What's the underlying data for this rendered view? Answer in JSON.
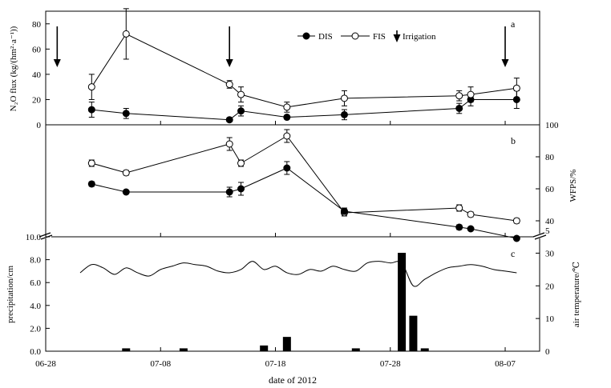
{
  "chart_data": [
    {
      "panel": "a",
      "type": "line",
      "ylabel": "N₂O flux (kg/(hm²·a⁻¹))",
      "ylim": [
        0,
        90
      ],
      "yticks": [
        0,
        20,
        40,
        60,
        80
      ],
      "legend": {
        "position": "top-right",
        "entries": [
          "DIS",
          "FIS",
          "Irrigation"
        ]
      },
      "irrigation_dates": [
        "2012-06-29",
        "2012-07-14",
        "2012-08-07"
      ],
      "series": [
        {
          "name": "DIS",
          "marker": "filled-circle",
          "x": [
            "2012-07-02",
            "2012-07-05",
            "2012-07-14",
            "2012-07-15",
            "2012-07-19",
            "2012-07-24",
            "2012-08-03",
            "2012-08-04",
            "2012-08-08"
          ],
          "values": [
            12,
            9,
            4,
            11,
            6,
            8,
            13,
            20,
            20
          ],
          "errors": [
            6,
            4,
            1.5,
            4,
            1.5,
            4,
            4,
            5,
            7
          ]
        },
        {
          "name": "FIS",
          "marker": "open-circle",
          "x": [
            "2012-07-02",
            "2012-07-05",
            "2012-07-14",
            "2012-07-15",
            "2012-07-19",
            "2012-07-24",
            "2012-08-03",
            "2012-08-04",
            "2012-08-08"
          ],
          "values": [
            30,
            72,
            32,
            24,
            14,
            21,
            23,
            24,
            29
          ],
          "errors": [
            10,
            20,
            3,
            6,
            4,
            6,
            4,
            6,
            8
          ]
        }
      ]
    },
    {
      "panel": "b",
      "type": "line",
      "ylabel": "WFPS/%",
      "ylim": [
        30,
        100
      ],
      "yticks": [
        40,
        60,
        80,
        100
      ],
      "extra_tick_label": "5",
      "series": [
        {
          "name": "FIS",
          "marker": "open-circle",
          "x": [
            "2012-07-02",
            "2012-07-05",
            "2012-07-14",
            "2012-07-15",
            "2012-07-19",
            "2012-07-24",
            "2012-08-03",
            "2012-08-04",
            "2012-08-08"
          ],
          "values": [
            76,
            70,
            88,
            76,
            93,
            45,
            48,
            44,
            40
          ],
          "errors": [
            2,
            1.5,
            4,
            2,
            4,
            2,
            2,
            1.5,
            1.5
          ]
        },
        {
          "name": "DIS",
          "marker": "filled-circle",
          "x": [
            "2012-07-02",
            "2012-07-05",
            "2012-07-14",
            "2012-07-15",
            "2012-07-19",
            "2012-07-24",
            "2012-08-03",
            "2012-08-04",
            "2012-08-08"
          ],
          "values": [
            63,
            58,
            58,
            60,
            73,
            46,
            36,
            35,
            29
          ],
          "errors": [
            1.5,
            1,
            3,
            4,
            4,
            2,
            1.5,
            1,
            1
          ]
        }
      ]
    },
    {
      "panel": "c",
      "type": "bar",
      "xlabel": "date of 2012",
      "ylabel": "precipitation/cm",
      "ylabel_right": "air temperature/℃",
      "ylim": [
        0,
        10
      ],
      "yticks": [
        0.0,
        2.0,
        4.0,
        6.0,
        8.0,
        10.0
      ],
      "ytick_labels": [
        "0.0",
        "2.0",
        "4.0",
        "6.0",
        "8.0",
        "10.0"
      ],
      "ylim_right": [
        0,
        35
      ],
      "yticks_right": [
        0,
        10,
        20,
        30
      ],
      "x_range": [
        "2012-06-28",
        "2012-08-10"
      ],
      "xticks": [
        "06-28",
        "07-08",
        "07-18",
        "07-28",
        "08-07"
      ],
      "precipitation": {
        "x": [
          "2012-07-05",
          "2012-07-10",
          "2012-07-17",
          "2012-07-19",
          "2012-07-25",
          "2012-07-29",
          "2012-07-30",
          "2012-07-31"
        ],
        "values": [
          0.25,
          0.25,
          0.5,
          1.25,
          0.25,
          8.6,
          3.1,
          0.25
        ]
      },
      "air_temperature": {
        "x": [
          "2012-07-01",
          "2012-07-02",
          "2012-07-03",
          "2012-07-04",
          "2012-07-05",
          "2012-07-06",
          "2012-07-07",
          "2012-07-08",
          "2012-07-09",
          "2012-07-10",
          "2012-07-11",
          "2012-07-12",
          "2012-07-13",
          "2012-07-14",
          "2012-07-15",
          "2012-07-16",
          "2012-07-17",
          "2012-07-18",
          "2012-07-19",
          "2012-07-20",
          "2012-07-21",
          "2012-07-22",
          "2012-07-23",
          "2012-07-24",
          "2012-07-25",
          "2012-07-26",
          "2012-07-27",
          "2012-07-28",
          "2012-07-29",
          "2012-07-30",
          "2012-07-31",
          "2012-08-01",
          "2012-08-02",
          "2012-08-03",
          "2012-08-04",
          "2012-08-05",
          "2012-08-06",
          "2012-08-07",
          "2012-08-08"
        ],
        "values": [
          24,
          26.5,
          25.5,
          23.5,
          25.5,
          24,
          23,
          25,
          26,
          27,
          26.5,
          26,
          24.5,
          24,
          25,
          27.5,
          25,
          26,
          24,
          23.5,
          25,
          24.5,
          26,
          25,
          24.5,
          27,
          27.5,
          27,
          27,
          20,
          22,
          24,
          25.5,
          26,
          26.5,
          26,
          25,
          24.5,
          24
        ]
      }
    }
  ]
}
